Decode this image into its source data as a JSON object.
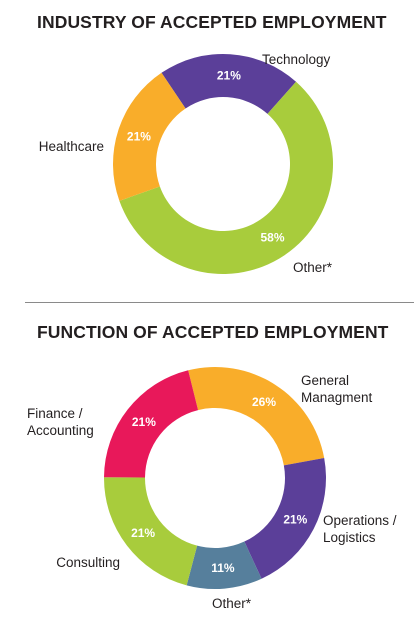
{
  "chart_data": [
    {
      "type": "pie",
      "title": "INDUSTRY OF ACCEPTED EMPLOYMENT",
      "categories": [
        "Technology",
        "Other*",
        "Healthcare"
      ],
      "values": [
        21,
        58,
        21
      ],
      "labels": [
        "21%",
        "58%",
        "21%"
      ],
      "colors": [
        "#5b3f99",
        "#a8cc3c",
        "#f9ad2a"
      ],
      "donut": true,
      "legend": "none"
    },
    {
      "type": "pie",
      "title": "FUNCTION OF ACCEPTED EMPLOYMENT",
      "categories": [
        "General Managment",
        "Operations / Logistics",
        "Other*",
        "Consulting",
        "Finance / Accounting"
      ],
      "values": [
        26,
        21,
        11,
        21,
        21
      ],
      "labels": [
        "26%",
        "21%",
        "11%",
        "21%",
        "21%"
      ],
      "colors": [
        "#f9ad2a",
        "#5b3f99",
        "#567f9c",
        "#a8cc3c",
        "#e8185a"
      ],
      "donut": true,
      "legend": "none"
    }
  ]
}
